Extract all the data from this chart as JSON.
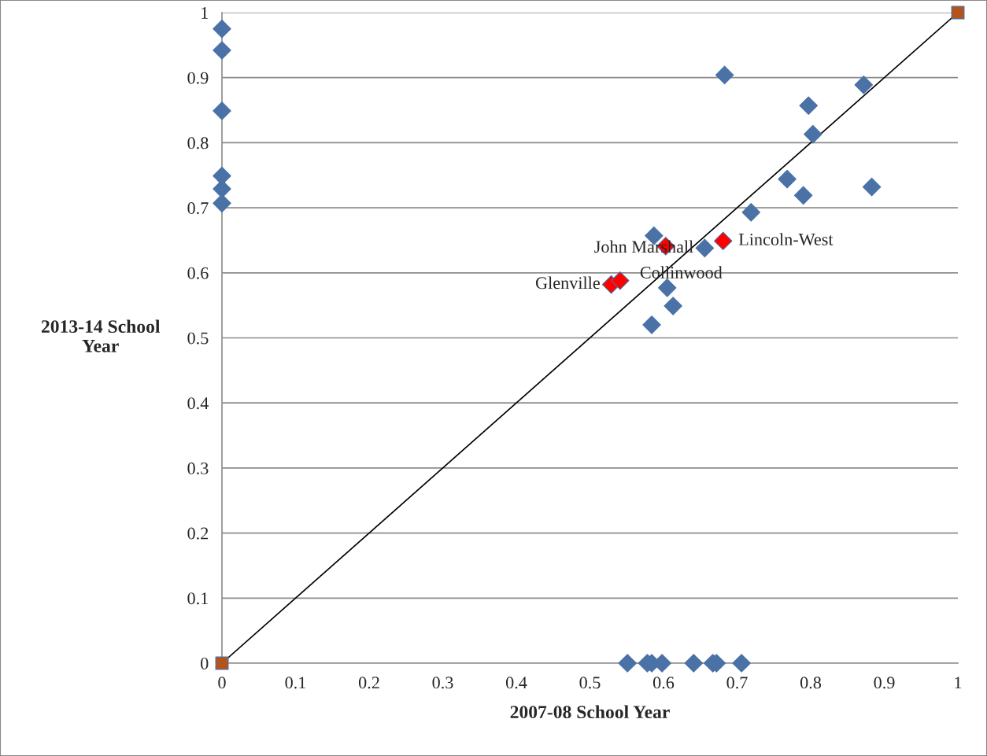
{
  "chart_data": {
    "type": "scatter",
    "xlabel": "2007-08 School Year",
    "ylabel": "2013-14 School Year",
    "xlim": [
      0,
      1
    ],
    "ylim": [
      0,
      1
    ],
    "xticks": [
      0,
      0.1,
      0.2,
      0.3,
      0.4,
      0.5,
      0.6,
      0.7,
      0.8,
      0.9,
      1
    ],
    "yticks": [
      0,
      0.1,
      0.2,
      0.3,
      0.4,
      0.5,
      0.6,
      0.7,
      0.8,
      0.9,
      1
    ],
    "grid": "y",
    "legend": false,
    "series": [
      {
        "marker": "diamond",
        "color": "#4a72a6",
        "x": [
          0,
          0,
          0,
          0,
          0,
          0,
          0.551,
          0.578,
          0.584,
          0.598,
          0.641,
          0.667,
          0.672,
          0.706,
          0.683,
          0.872,
          0.797,
          0.803,
          0.768,
          0.79,
          0.883,
          0.719,
          0.587,
          0.656,
          0.605,
          0.613,
          0.584
        ],
        "values": [
          0.975,
          0.942,
          0.849,
          0.749,
          0.729,
          0.707,
          0,
          0,
          0,
          0,
          0,
          0,
          0,
          0,
          0.904,
          0.889,
          0.857,
          0.813,
          0.744,
          0.719,
          0.732,
          0.693,
          0.657,
          0.638,
          0.577,
          0.549,
          0.52
        ]
      },
      {
        "marker": "diamond",
        "color": "#ff0000",
        "x": [
          0.529,
          0.541,
          0.603,
          0.681
        ],
        "values": [
          0.582,
          0.588,
          0.641,
          0.649
        ]
      },
      {
        "type": "line",
        "marker": "none",
        "color": "#000000",
        "x": [
          0,
          1
        ],
        "values": [
          0,
          1
        ]
      },
      {
        "marker": "square",
        "color": "#b4531a",
        "x": [
          0,
          1
        ],
        "values": [
          0,
          1
        ]
      }
    ],
    "annotations": [
      {
        "text": "Glenville",
        "x": 0.529,
        "y": 0.582
      },
      {
        "text": "Collinwood",
        "x": 0.541,
        "y": 0.588
      },
      {
        "text": "John Marshall",
        "x": 0.603,
        "y": 0.641
      },
      {
        "text": "Lincoln-West",
        "x": 0.681,
        "y": 0.649
      }
    ]
  }
}
